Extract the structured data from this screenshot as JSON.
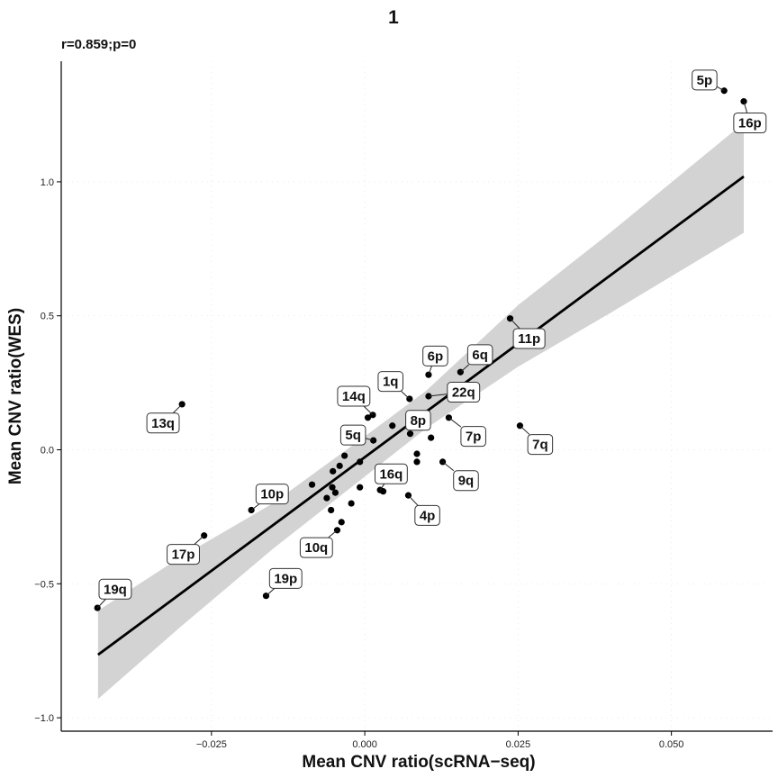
{
  "chart_data": {
    "type": "scatter",
    "title": "1",
    "annotation": "r=0.859;p=0",
    "xlabel": "Mean CNV ratio(scRNA−seq)",
    "ylabel": "Mean CNV ratio(WES)",
    "xlim": [
      -0.0495,
      0.0665
    ],
    "ylim": [
      -1.05,
      1.45
    ],
    "xticks": [
      -0.025,
      0.0,
      0.025,
      0.05
    ],
    "xtick_labels": [
      "−0.025",
      "0.000",
      "0.025",
      "0.050"
    ],
    "yticks": [
      -1.0,
      -0.5,
      0.0,
      0.5,
      1.0
    ],
    "ytick_labels": [
      "−1.0",
      "−0.5",
      "0.0",
      "0.5",
      "1.0"
    ],
    "regression": {
      "x0": -0.0435,
      "y0": -0.765,
      "x1": 0.0618,
      "y1": 1.02,
      "band": [
        {
          "x": -0.0435,
          "lo": -0.93,
          "hi": -0.6
        },
        {
          "x": -0.03,
          "lo": -0.66,
          "hi": -0.4
        },
        {
          "x": -0.015,
          "lo": -0.37,
          "hi": -0.2
        },
        {
          "x": 0.0,
          "lo": -0.1,
          "hi": 0.05
        },
        {
          "x": 0.01,
          "lo": 0.08,
          "hi": 0.22
        },
        {
          "x": 0.025,
          "lo": 0.31,
          "hi": 0.54
        },
        {
          "x": 0.04,
          "lo": 0.51,
          "hi": 0.81
        },
        {
          "x": 0.0618,
          "lo": 0.81,
          "hi": 1.22
        }
      ]
    },
    "points": [
      {
        "x": 0.0586,
        "y": 1.34,
        "label": "5p",
        "lx": 0.0554,
        "ly": 1.38
      },
      {
        "x": 0.0618,
        "y": 1.3,
        "label": "16p",
        "lx": 0.0628,
        "ly": 1.22
      },
      {
        "x": 0.0237,
        "y": 0.49,
        "label": "11p",
        "lx": 0.0268,
        "ly": 0.415
      },
      {
        "x": 0.0156,
        "y": 0.29,
        "label": "6q",
        "lx": 0.0188,
        "ly": 0.355
      },
      {
        "x": 0.0104,
        "y": 0.28,
        "label": "6p",
        "lx": 0.0115,
        "ly": 0.35
      },
      {
        "x": 0.0104,
        "y": 0.2,
        "label": "22q",
        "lx": 0.0161,
        "ly": 0.215
      },
      {
        "x": 0.0073,
        "y": 0.19,
        "label": "1q",
        "lx": 0.0042,
        "ly": 0.255
      },
      {
        "x": 0.0013,
        "y": 0.13,
        "label": "14q",
        "lx": -0.0018,
        "ly": 0.2
      },
      {
        "x": -0.0298,
        "y": 0.17,
        "label": "13q",
        "lx": -0.0329,
        "ly": 0.1
      },
      {
        "x": 0.0074,
        "y": 0.06,
        "label": "8p",
        "lx": 0.0087,
        "ly": 0.11
      },
      {
        "x": 0.0137,
        "y": 0.12,
        "label": "7p",
        "lx": 0.0177,
        "ly": 0.05
      },
      {
        "x": 0.0253,
        "y": 0.09,
        "label": "7q",
        "lx": 0.0286,
        "ly": 0.02
      },
      {
        "x": 0.0014,
        "y": 0.035,
        "label": "5q",
        "lx": -0.0019,
        "ly": 0.055
      },
      {
        "x": 0.0127,
        "y": -0.045,
        "label": "9q",
        "lx": 0.0165,
        "ly": -0.115
      },
      {
        "x": 0.0025,
        "y": -0.15,
        "label": "16q",
        "lx": 0.0043,
        "ly": -0.09
      },
      {
        "x": 0.0071,
        "y": -0.17,
        "label": "4p",
        "lx": 0.0102,
        "ly": -0.245
      },
      {
        "x": -0.0185,
        "y": -0.225,
        "label": "10p",
        "lx": -0.0151,
        "ly": -0.165
      },
      {
        "x": -0.0262,
        "y": -0.32,
        "label": "17p",
        "lx": -0.0296,
        "ly": -0.39
      },
      {
        "x": -0.0045,
        "y": -0.3,
        "label": "10q",
        "lx": -0.0079,
        "ly": -0.365
      },
      {
        "x": -0.0161,
        "y": -0.545,
        "label": "19p",
        "lx": -0.0129,
        "ly": -0.48
      },
      {
        "x": -0.0436,
        "y": -0.59,
        "label": "19q",
        "lx": -0.0407,
        "ly": -0.52
      },
      {
        "x": -0.0033,
        "y": -0.022
      },
      {
        "x": -0.0008,
        "y": -0.045
      },
      {
        "x": -0.0041,
        "y": -0.06
      },
      {
        "x": -0.0052,
        "y": -0.08
      },
      {
        "x": -0.0062,
        "y": -0.18
      },
      {
        "x": -0.0055,
        "y": -0.225
      },
      {
        "x": -0.0048,
        "y": -0.16
      },
      {
        "x": -0.0022,
        "y": -0.2
      },
      {
        "x": -0.0008,
        "y": -0.14
      },
      {
        "x": -0.0038,
        "y": -0.27
      },
      {
        "x": -0.0086,
        "y": -0.13
      },
      {
        "x": -0.0053,
        "y": -0.14
      },
      {
        "x": 0.003,
        "y": -0.155
      },
      {
        "x": 0.0085,
        "y": -0.045
      },
      {
        "x": 0.0085,
        "y": -0.015
      },
      {
        "x": 0.0108,
        "y": 0.045
      },
      {
        "x": 0.0045,
        "y": 0.09
      },
      {
        "x": 0.0005,
        "y": 0.12
      }
    ]
  }
}
